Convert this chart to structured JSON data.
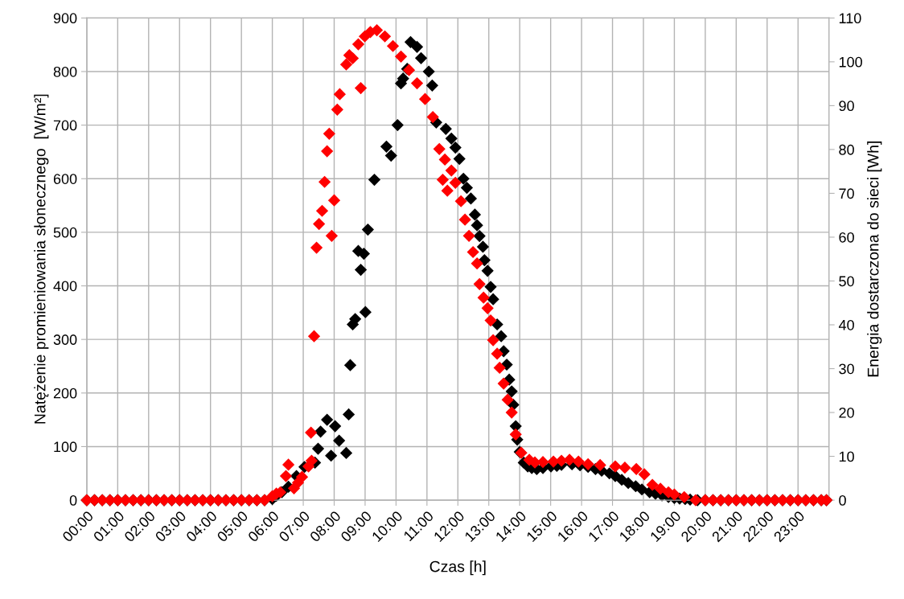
{
  "chart_data": {
    "type": "scatter",
    "xlabel": "Czas [h]",
    "ylabel": "Natężenie promieniowania słonecznego  [W/m²]",
    "y2label": "Energia dostarczona do sieci [Wh]",
    "xlim": [
      0,
      24
    ],
    "ylim": [
      0,
      900
    ],
    "y2lim": [
      0,
      110
    ],
    "xticks": [
      {
        "value": 0,
        "label": "00:00"
      },
      {
        "value": 1,
        "label": "01:00"
      },
      {
        "value": 2,
        "label": "02:00"
      },
      {
        "value": 3,
        "label": "03:00"
      },
      {
        "value": 4,
        "label": "04:00"
      },
      {
        "value": 5,
        "label": "05:00"
      },
      {
        "value": 6,
        "label": "06:00"
      },
      {
        "value": 7,
        "label": "07:00"
      },
      {
        "value": 8,
        "label": "08:00"
      },
      {
        "value": 9,
        "label": "09:00"
      },
      {
        "value": 10,
        "label": "10:00"
      },
      {
        "value": 11,
        "label": "11:00"
      },
      {
        "value": 12,
        "label": "12:00"
      },
      {
        "value": 13,
        "label": "13:00"
      },
      {
        "value": 14,
        "label": "14:00"
      },
      {
        "value": 15,
        "label": "15:00"
      },
      {
        "value": 16,
        "label": "16:00"
      },
      {
        "value": 17,
        "label": "17:00"
      },
      {
        "value": 18,
        "label": "18:00"
      },
      {
        "value": 19,
        "label": "19:00"
      },
      {
        "value": 20,
        "label": "20:00"
      },
      {
        "value": 21,
        "label": "21:00"
      },
      {
        "value": 22,
        "label": "22:00"
      },
      {
        "value": 23,
        "label": "23:00"
      }
    ],
    "yticks": [
      0,
      100,
      200,
      300,
      400,
      500,
      600,
      700,
      800,
      900
    ],
    "y2ticks": [
      0,
      10,
      20,
      30,
      40,
      50,
      60,
      70,
      80,
      90,
      100,
      110
    ],
    "grid": true,
    "marker": "diamond",
    "series": [
      {
        "color": "#000000",
        "axis": "y",
        "x": [
          0,
          0.25,
          0.5,
          0.75,
          1,
          1.25,
          1.5,
          1.75,
          2,
          2.25,
          2.5,
          2.75,
          3,
          3.25,
          3.5,
          3.75,
          4,
          4.25,
          4.5,
          4.75,
          5,
          5.25,
          5.5,
          5.75,
          6.0,
          6.13,
          6.31,
          6.52,
          6.78,
          7.04,
          7.38,
          7.48,
          7.56,
          7.77,
          8.03,
          7.9,
          8.16,
          8.39,
          8.47,
          8.52,
          8.6,
          8.68,
          9.01,
          8.86,
          8.78,
          8.96,
          9.09,
          9.3,
          9.69,
          9.84,
          10.05,
          10.16,
          10.23,
          10.36,
          10.47,
          10.68,
          10.81,
          11.06,
          11.17,
          11.3,
          11.61,
          11.79,
          11.92,
          12.05,
          12.18,
          12.29,
          12.42,
          12.55,
          12.62,
          12.7,
          12.81,
          12.86,
          12.96,
          13.06,
          13.14,
          13.27,
          13.4,
          13.48,
          13.58,
          13.66,
          13.74,
          13.79,
          13.87,
          13.92,
          14.0,
          14.13,
          14.26,
          14.39,
          14.55,
          14.75,
          15.01,
          15.2,
          15.35,
          15.69,
          15.95,
          16.21,
          16.45,
          16.65,
          16.9,
          17.09,
          17.3,
          17.51,
          17.75,
          17.95,
          18.2,
          18.39,
          18.6,
          18.81,
          19.0,
          19.17,
          19.35,
          19.51,
          19.75,
          20,
          20.25,
          20.5,
          20.75,
          21,
          21.25,
          21.5,
          21.75,
          22,
          22.25,
          22.5,
          22.75,
          23,
          23.25,
          23.5,
          23.75,
          23.92
        ],
        "values": [
          0,
          0,
          0,
          0,
          0,
          0,
          0,
          0,
          0,
          0,
          0,
          0,
          0,
          0,
          0,
          0,
          0,
          0,
          0,
          0,
          0,
          0,
          0,
          0,
          2,
          8,
          15,
          25,
          45,
          62,
          70,
          96,
          128,
          150,
          138,
          83,
          111,
          88,
          160,
          252,
          328,
          338,
          351,
          430,
          465,
          460,
          505,
          598,
          660,
          643,
          700,
          778,
          787,
          805,
          855,
          846,
          825,
          800,
          774,
          705,
          693,
          675,
          658,
          637,
          600,
          583,
          563,
          533,
          513,
          493,
          473,
          448,
          428,
          398,
          375,
          328,
          306,
          278,
          253,
          225,
          203,
          178,
          138,
          113,
          90,
          70,
          63,
          60,
          58,
          60,
          63,
          64,
          66,
          67,
          65,
          62,
          58,
          55,
          50,
          45,
          38,
          32,
          26,
          20,
          15,
          12,
          9,
          6,
          4,
          3,
          2,
          1,
          0,
          0,
          0,
          0,
          0,
          0,
          0,
          0,
          0,
          0,
          0,
          0,
          0,
          0,
          0,
          0,
          0,
          0
        ]
      },
      {
        "color": "#ff0000",
        "axis": "y2",
        "x": [
          0,
          0.25,
          0.5,
          0.75,
          1,
          1.25,
          1.5,
          1.75,
          2,
          2.25,
          2.5,
          2.75,
          3,
          3.25,
          3.5,
          3.75,
          4,
          4.25,
          4.5,
          4.75,
          5,
          5.25,
          5.5,
          5.75,
          6.0,
          6.13,
          6.26,
          6.44,
          6.52,
          6.7,
          6.83,
          6.96,
          7.17,
          7.27,
          7.25,
          7.35,
          7.43,
          7.51,
          7.61,
          7.69,
          7.77,
          7.84,
          7.92,
          8.0,
          8.1,
          8.18,
          8.39,
          8.49,
          8.6,
          8.78,
          8.86,
          8.99,
          9.17,
          9.38,
          9.64,
          9.9,
          10.16,
          10.42,
          10.68,
          10.94,
          11.19,
          11.4,
          11.58,
          11.51,
          11.66,
          11.79,
          11.92,
          12.1,
          12.23,
          12.36,
          12.49,
          12.62,
          12.7,
          12.83,
          12.96,
          13.06,
          13.14,
          13.27,
          13.35,
          13.48,
          13.61,
          13.74,
          13.87,
          14.05,
          14.31,
          14.49,
          14.75,
          15.09,
          15.35,
          15.61,
          15.9,
          16.21,
          16.6,
          17.09,
          17.4,
          17.77,
          18.03,
          18.29,
          18.55,
          18.81,
          19.0,
          19.32,
          19.69,
          20,
          20.25,
          20.5,
          20.75,
          21,
          21.25,
          21.5,
          21.75,
          22,
          22.25,
          22.5,
          22.75,
          23,
          23.25,
          23.5,
          23.75,
          23.92
        ],
        "values": [
          0,
          0,
          0,
          0,
          0,
          0,
          0,
          0,
          0,
          0,
          0,
          0,
          0,
          0,
          0,
          0,
          0,
          0,
          0,
          0,
          0,
          0,
          0,
          0,
          0.9,
          1.5,
          1.8,
          5.5,
          8.1,
          2.7,
          4,
          5.3,
          7.7,
          9,
          15.4,
          37.4,
          57.6,
          63,
          66,
          72.6,
          79.6,
          83.6,
          60.3,
          68.4,
          89.1,
          92.6,
          99.4,
          101.5,
          100.8,
          104,
          94,
          105.8,
          106.8,
          107.2,
          105.8,
          103.6,
          101.2,
          98.1,
          95.1,
          91.5,
          87.4,
          80.1,
          77.7,
          73.1,
          70.6,
          75.2,
          72.4,
          68.2,
          64,
          60.3,
          56.6,
          54,
          49.3,
          46.2,
          43.8,
          41,
          36.5,
          33.4,
          30.2,
          26.6,
          22.9,
          20,
          15,
          10.8,
          9.2,
          8.6,
          8.7,
          8.8,
          9.0,
          9.2,
          8.8,
          8.2,
          8.0,
          7.7,
          7.4,
          7.1,
          5.9,
          3.5,
          2.6,
          1.8,
          1.3,
          0.7,
          0,
          0,
          0,
          0,
          0,
          0,
          0,
          0,
          0,
          0,
          0,
          0,
          0,
          0,
          0,
          0,
          0,
          0
        ]
      }
    ]
  }
}
